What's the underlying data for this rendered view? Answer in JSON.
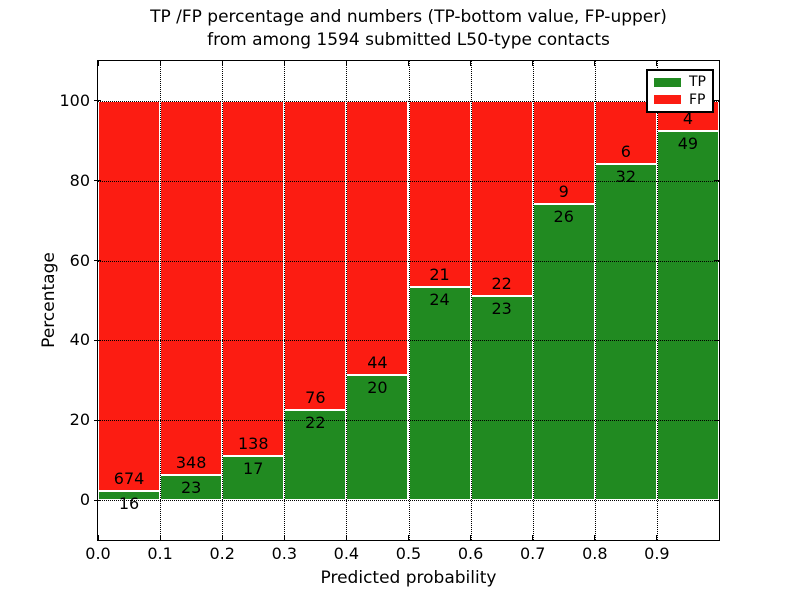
{
  "title": {
    "line1": "TP /FP percentage and numbers (TP-bottom value, FP-upper)",
    "line2": "from among 1594 submitted L50-type contacts"
  },
  "axes": {
    "xlabel": "Predicted probability",
    "ylabel": "Percentage",
    "xtick_labels": [
      "0.0",
      "0.1",
      "0.2",
      "0.3",
      "0.4",
      "0.5",
      "0.6",
      "0.7",
      "0.8",
      "0.9"
    ],
    "ytick_labels": [
      "0",
      "20",
      "40",
      "60",
      "80",
      "100"
    ]
  },
  "legend": {
    "position": "upper right",
    "entries": [
      {
        "label": "TP",
        "color": "#218a21"
      },
      {
        "label": "FP",
        "color": "#fc1c12"
      }
    ]
  },
  "colors": {
    "tp": "#218a21",
    "fp": "#fc1c12",
    "grid": "#000000",
    "bar_edge": "#ffffff",
    "background": "#ffffff"
  },
  "chart_data": {
    "type": "bar",
    "variant": "stacked-100-percent",
    "title": "TP /FP percentage and numbers (TP-bottom value, FP-upper) from among 1594 submitted L50-type contacts",
    "xlabel": "Predicted probability",
    "ylabel": "Percentage",
    "total_contacts": 1594,
    "bin_width": 0.1,
    "bin_starts": [
      0.0,
      0.1,
      0.2,
      0.3,
      0.4,
      0.5,
      0.6,
      0.7,
      0.8,
      0.9
    ],
    "xticks": [
      0.0,
      0.1,
      0.2,
      0.3,
      0.4,
      0.5,
      0.6,
      0.7,
      0.8,
      0.9
    ],
    "yticks": [
      0,
      20,
      40,
      60,
      80,
      100
    ],
    "xlim": [
      0,
      1
    ],
    "ylim": [
      -10,
      110
    ],
    "grid": "dotted",
    "legend_position": "upper right",
    "series": [
      {
        "name": "TP",
        "color": "#218a21",
        "values": [
          16,
          23,
          17,
          22,
          20,
          24,
          23,
          26,
          32,
          49
        ]
      },
      {
        "name": "FP",
        "color": "#fc1c12",
        "values": [
          674,
          348,
          138,
          76,
          44,
          21,
          22,
          9,
          6,
          4
        ]
      }
    ],
    "tp_percent_approx": [
      2.3,
      6.2,
      11.0,
      22.4,
      31.3,
      53.3,
      51.1,
      74.3,
      84.2,
      92.5
    ]
  }
}
